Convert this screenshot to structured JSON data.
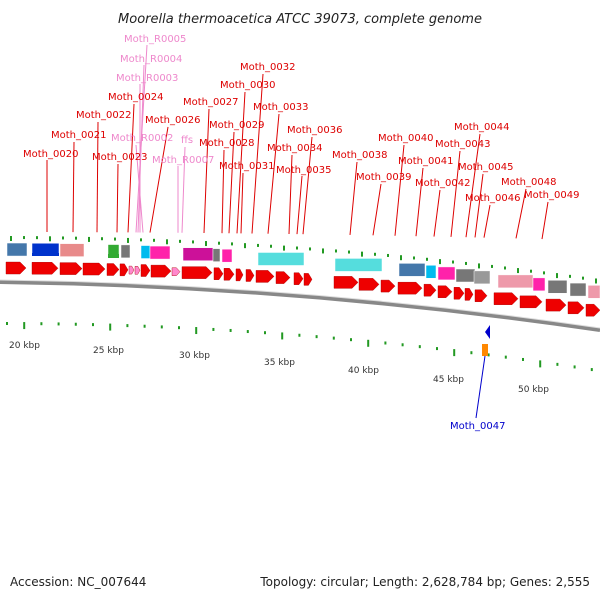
{
  "header": {
    "title": "Moorella thermoacetica ATCC 39073, complete genome"
  },
  "footer": {
    "accession": "Accession: NC_007644",
    "summary": "Topology: circular; Length: 2,628,784 bp; Genes: 2,555"
  },
  "colors": {
    "cds": "#ee0000",
    "rna": "#ff88cc",
    "label_cds": "#dd0000",
    "label_rna": "#ee88cc",
    "label_selected": "#0000cc",
    "backbone": "#888888",
    "tick": "#229922"
  },
  "gene_labels": [
    {
      "id": "Moth_R0005",
      "kind": "rna"
    },
    {
      "id": "Moth_R0004",
      "kind": "rna"
    },
    {
      "id": "Moth_R0003",
      "kind": "rna"
    },
    {
      "id": "Moth_R0002",
      "kind": "rna"
    },
    {
      "id": "Moth_R0007",
      "kind": "rna"
    },
    {
      "id": "ffs",
      "kind": "rna"
    },
    {
      "id": "Moth_0020",
      "kind": "cds"
    },
    {
      "id": "Moth_0021",
      "kind": "cds"
    },
    {
      "id": "Moth_0022",
      "kind": "cds"
    },
    {
      "id": "Moth_0023",
      "kind": "cds"
    },
    {
      "id": "Moth_0024",
      "kind": "cds"
    },
    {
      "id": "Moth_0026",
      "kind": "cds"
    },
    {
      "id": "Moth_0027",
      "kind": "cds"
    },
    {
      "id": "Moth_0028",
      "kind": "cds"
    },
    {
      "id": "Moth_0029",
      "kind": "cds"
    },
    {
      "id": "Moth_0030",
      "kind": "cds"
    },
    {
      "id": "Moth_0031",
      "kind": "cds"
    },
    {
      "id": "Moth_0032",
      "kind": "cds"
    },
    {
      "id": "Moth_0033",
      "kind": "cds"
    },
    {
      "id": "Moth_0034",
      "kind": "cds"
    },
    {
      "id": "Moth_0035",
      "kind": "cds"
    },
    {
      "id": "Moth_0036",
      "kind": "cds"
    },
    {
      "id": "Moth_0038",
      "kind": "cds"
    },
    {
      "id": "Moth_0039",
      "kind": "cds"
    },
    {
      "id": "Moth_0040",
      "kind": "cds"
    },
    {
      "id": "Moth_0041",
      "kind": "cds"
    },
    {
      "id": "Moth_0042",
      "kind": "cds"
    },
    {
      "id": "Moth_0043",
      "kind": "cds"
    },
    {
      "id": "Moth_0044",
      "kind": "cds"
    },
    {
      "id": "Moth_0045",
      "kind": "cds"
    },
    {
      "id": "Moth_0046",
      "kind": "cds"
    },
    {
      "id": "Moth_0048",
      "kind": "cds"
    },
    {
      "id": "Moth_0049",
      "kind": "cds"
    },
    {
      "id": "Moth_0047",
      "kind": "selected"
    }
  ],
  "scale_ticks": [
    "20 kbp",
    "25 kbp",
    "30 kbp",
    "35 kbp",
    "40 kbp",
    "45 kbp",
    "50 kbp"
  ],
  "cog_colors": [
    "#4477aa",
    "#0033cc",
    "#e88a8a",
    "#ff8800",
    "#33aa33",
    "#777777",
    "#00bbee",
    "#ff22aa",
    "#cc1199",
    "#55dddd",
    "#999999",
    "#ee99aa"
  ]
}
